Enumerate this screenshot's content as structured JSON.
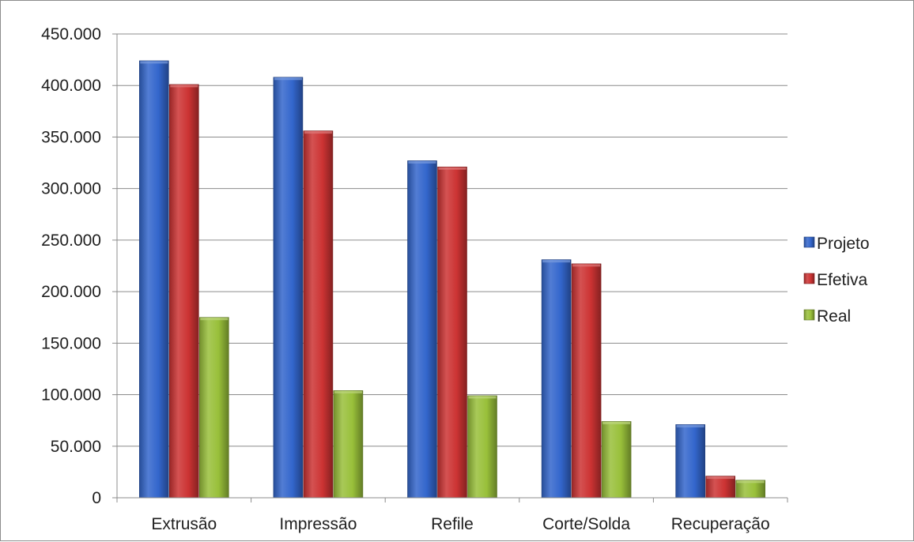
{
  "chart_data": {
    "type": "bar",
    "title": "",
    "xlabel": "",
    "ylabel": "",
    "categories": [
      "Extrusão",
      "Impressão",
      "Refile",
      "Corte/Solda",
      "Recuperação"
    ],
    "series": [
      {
        "name": "Projeto",
        "color": "#3366cc",
        "values": [
          424000,
          408000,
          327000,
          231000,
          71000
        ]
      },
      {
        "name": "Efetiva",
        "color": "#cc3333",
        "values": [
          401000,
          356000,
          321000,
          227000,
          21000
        ]
      },
      {
        "name": "Real",
        "color": "#99c03a",
        "values": [
          175000,
          104000,
          99000,
          74000,
          17000
        ]
      }
    ],
    "ylim": [
      0,
      450000
    ],
    "yticks": [
      0,
      50000,
      100000,
      150000,
      200000,
      250000,
      300000,
      350000,
      400000,
      450000
    ],
    "ytick_labels": [
      "0",
      "50.000",
      "100.000",
      "150.000",
      "200.000",
      "250.000",
      "300.000",
      "350.000",
      "400.000",
      "450.000"
    ],
    "grid": true,
    "legend_position": "right"
  }
}
